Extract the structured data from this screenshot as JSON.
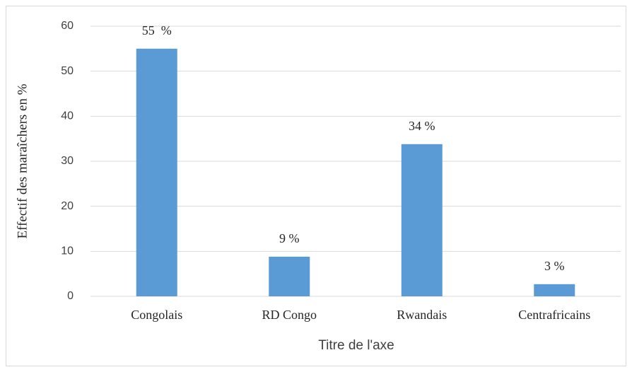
{
  "chart_data": {
    "type": "bar",
    "y_label": "Effectif des maraîchers en %",
    "x_label": "Titre de l'axe",
    "categories": [
      "Congolais",
      "RD Congo",
      "Rwandais",
      "Centrafricains"
    ],
    "values": [
      55,
      8.8,
      33.8,
      2.7
    ],
    "value_labels": [
      "55  %",
      "9 %",
      "34 %",
      "3 %"
    ],
    "color": "#5b9bd5",
    "ylim": [
      0,
      60
    ],
    "yticks": [
      0,
      10,
      20,
      30,
      40,
      50,
      60
    ],
    "grid": true
  }
}
